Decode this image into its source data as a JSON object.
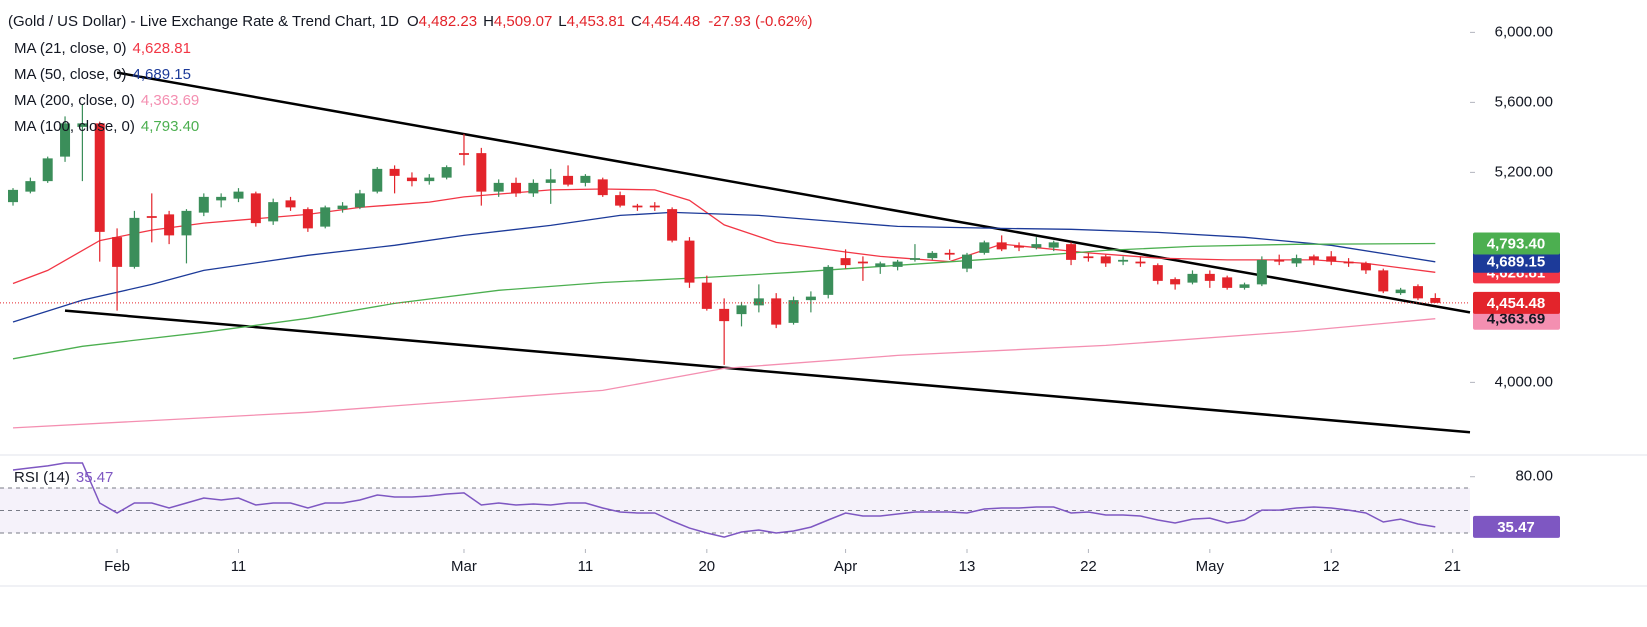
{
  "chart_data": [
    {
      "type": "candlestick",
      "title": "(Gold / US Dollar) - Live Exchange Rate & Trend Chart, 1D",
      "ohlc_header": [
        {
          "key": "O",
          "text": "4,482.23"
        },
        {
          "key": "H",
          "text": "4,509.07"
        },
        {
          "key": "L",
          "text": "4,453.81"
        },
        {
          "key": "C",
          "text": "4,454.48"
        }
      ],
      "change_text": "-27.93 (-0.62%)",
      "xlim": [
        -0.75,
        84
      ],
      "xticks": [
        {
          "value": 6,
          "label": "Feb"
        },
        {
          "value": 13,
          "label": "11"
        },
        {
          "value": 26,
          "label": "Mar"
        },
        {
          "value": 33,
          "label": "11"
        },
        {
          "value": 40,
          "label": "20"
        },
        {
          "value": 48,
          "label": "Apr"
        },
        {
          "value": 55,
          "label": "13"
        },
        {
          "value": 62,
          "label": "22"
        },
        {
          "value": 69,
          "label": "May"
        },
        {
          "value": 76,
          "label": "12"
        },
        {
          "value": 83,
          "label": "21"
        }
      ],
      "ylim": [
        3585,
        6185
      ],
      "yticks": [
        {
          "value": 6000,
          "label": "6,000.00"
        },
        {
          "value": 5600,
          "label": "5,600.00"
        },
        {
          "value": 5200,
          "label": "5,200.00"
        },
        {
          "value": 4000,
          "label": "4,000.00"
        }
      ],
      "up_color": "#3b8e5a",
      "down_color": "#e3242b",
      "candles": {
        "x": [
          0,
          1,
          2,
          3,
          4,
          5,
          6,
          7,
          8,
          9,
          10,
          11,
          12,
          13,
          14,
          15,
          16,
          17,
          18,
          19,
          20,
          21,
          22,
          23,
          24,
          25,
          26,
          27,
          28,
          29,
          30,
          31,
          32,
          33,
          34,
          35,
          36,
          37,
          38,
          39,
          40,
          41,
          42,
          43,
          44,
          45,
          46,
          47,
          48,
          49,
          50,
          51,
          52,
          53,
          54,
          55,
          56,
          57,
          58,
          59,
          60,
          61,
          62,
          63,
          64,
          65,
          66,
          67,
          68,
          69,
          70,
          71,
          72,
          73,
          74,
          75,
          76,
          77,
          78,
          79,
          80,
          81,
          82
        ],
        "open": [
          5030,
          5090,
          5150,
          5290,
          5460,
          5480,
          4830,
          4660,
          4950,
          4960,
          4840,
          4970,
          5040,
          5050,
          5080,
          4920,
          5040,
          4990,
          4890,
          4990,
          5000,
          5090,
          5220,
          5170,
          5150,
          5170,
          5310,
          5310,
          5090,
          5140,
          5080,
          5140,
          5180,
          5140,
          5160,
          5070,
          5010,
          5010,
          4990,
          4810,
          4570,
          4420,
          4390,
          4440,
          4480,
          4340,
          4470,
          4500,
          4710,
          4690,
          4660,
          4660,
          4700,
          4710,
          4740,
          4650,
          4740,
          4800,
          4780,
          4770,
          4770,
          4790,
          4720,
          4720,
          4690,
          4690,
          4670,
          4590,
          4570,
          4620,
          4600,
          4540,
          4560,
          4700,
          4680,
          4720,
          4720,
          4690,
          4680,
          4640,
          4510,
          4550,
          4482.23
        ],
        "high": [
          5110,
          5170,
          5290,
          5520,
          5590,
          5490,
          4880,
          4980,
          5080,
          4980,
          4990,
          5080,
          5080,
          5110,
          5090,
          5050,
          5060,
          5000,
          5010,
          5030,
          5100,
          5230,
          5240,
          5200,
          5190,
          5240,
          5420,
          5340,
          5160,
          5170,
          5160,
          5220,
          5240,
          5190,
          5170,
          5090,
          5020,
          5030,
          5000,
          4830,
          4610,
          4480,
          4460,
          4560,
          4510,
          4490,
          4520,
          4670,
          4760,
          4720,
          4690,
          4700,
          4790,
          4750,
          4760,
          4740,
          4810,
          4840,
          4800,
          4830,
          4810,
          4800,
          4740,
          4730,
          4720,
          4720,
          4680,
          4600,
          4640,
          4640,
          4610,
          4570,
          4720,
          4730,
          4730,
          4730,
          4750,
          4710,
          4690,
          4650,
          4540,
          4560,
          4509.07
        ],
        "low": [
          5010,
          5080,
          5140,
          5260,
          5150,
          4690,
          4410,
          4650,
          4800,
          4790,
          4680,
          4950,
          5000,
          5030,
          4890,
          4900,
          4980,
          4860,
          4880,
          4970,
          4990,
          5080,
          5080,
          5120,
          5130,
          5160,
          5240,
          5010,
          5060,
          5060,
          5060,
          5020,
          5120,
          5120,
          5060,
          5000,
          4980,
          4980,
          4800,
          4540,
          4410,
          4100,
          4320,
          4400,
          4310,
          4330,
          4400,
          4480,
          4650,
          4580,
          4620,
          4640,
          4690,
          4700,
          4700,
          4630,
          4730,
          4750,
          4750,
          4760,
          4750,
          4670,
          4690,
          4660,
          4670,
          4660,
          4560,
          4530,
          4560,
          4540,
          4530,
          4530,
          4550,
          4670,
          4660,
          4670,
          4670,
          4660,
          4620,
          4510,
          4500,
          4470,
          4453.81
        ],
        "close": [
          5100,
          5150,
          5280,
          5480,
          5480,
          4860,
          4660,
          4940,
          4940,
          4840,
          4980,
          5060,
          5060,
          5090,
          4910,
          5030,
          5000,
          4880,
          5000,
          5010,
          5080,
          5220,
          5180,
          5150,
          5170,
          5230,
          5300,
          5090,
          5140,
          5080,
          5140,
          5160,
          5130,
          5180,
          5070,
          5010,
          5000,
          5000,
          4810,
          4570,
          4420,
          4350,
          4440,
          4480,
          4330,
          4470,
          4490,
          4660,
          4670,
          4680,
          4680,
          4690,
          4710,
          4740,
          4730,
          4730,
          4800,
          4760,
          4770,
          4790,
          4800,
          4700,
          4710,
          4680,
          4700,
          4680,
          4580,
          4560,
          4620,
          4580,
          4540,
          4560,
          4700,
          4690,
          4710,
          4700,
          4690,
          4680,
          4640,
          4520,
          4530,
          4480,
          4454.48
        ],
        "close_label": "4,454.48"
      },
      "series": [
        {
          "name": "MA (21, close, 0)",
          "color": "#f23645",
          "x": [
            0,
            2,
            5,
            8,
            11,
            17,
            20,
            24,
            26,
            31,
            34,
            37,
            39,
            41,
            44,
            48,
            50,
            54,
            57,
            62,
            66,
            70,
            75,
            78,
            82
          ],
          "values": [
            4565,
            4640,
            4810,
            4870,
            4910,
            4960,
            5000,
            5030,
            5060,
            5100,
            5105,
            5100,
            5040,
            4900,
            4800,
            4745,
            4720,
            4690,
            4790,
            4740,
            4710,
            4700,
            4700,
            4680,
            4628.81
          ],
          "last_label": "4,628.81"
        },
        {
          "name": "MA (50, close, 0)",
          "color": "#1c3a99",
          "x": [
            0,
            4,
            8,
            11,
            17,
            22,
            26,
            31,
            35,
            38,
            43,
            48,
            51,
            57,
            61,
            66,
            71,
            76,
            82
          ],
          "values": [
            4345,
            4470,
            4560,
            4640,
            4726,
            4783,
            4840,
            4897,
            4954,
            4971,
            4954,
            4914,
            4891,
            4880,
            4875,
            4857,
            4829,
            4783,
            4689.15
          ],
          "last_label": "4,689.15"
        },
        {
          "name": "MA (200, close, 0)",
          "color": "#f48fb1",
          "x": [
            0,
            17,
            34,
            41,
            51,
            63,
            74,
            82
          ],
          "values": [
            3740,
            3829,
            3954,
            4080,
            4154,
            4211,
            4291,
            4363.69
          ],
          "last_label": "4,363.69"
        },
        {
          "name": "MA (100, close, 0)",
          "color": "#4caf50",
          "x": [
            0,
            4,
            11,
            17,
            22,
            28,
            34,
            40,
            45,
            51,
            57,
            63,
            68,
            74,
            82
          ],
          "values": [
            4135,
            4206,
            4286,
            4366,
            4451,
            4526,
            4571,
            4600,
            4629,
            4669,
            4709,
            4754,
            4777,
            4789,
            4793.4
          ],
          "last_label": "4,793.40"
        }
      ],
      "trendlines": [
        {
          "x": [
            6,
            84
          ],
          "values": [
            5770,
            4400
          ]
        },
        {
          "x": [
            3,
            84
          ],
          "values": [
            4410,
            3715
          ]
        }
      ],
      "trendline_color": "#000000"
    },
    {
      "type": "line",
      "xlim": [
        -0.75,
        84
      ],
      "ylim": [
        16.7,
        99.3
      ],
      "yticks": [
        {
          "value": 80,
          "label": "80.00"
        }
      ],
      "hlines": [
        70,
        50,
        30
      ],
      "band": [
        30,
        70
      ],
      "x": [
        0,
        1,
        2,
        3,
        4,
        5,
        6,
        7,
        8,
        9,
        10,
        11,
        12,
        13,
        14,
        15,
        16,
        17,
        18,
        19,
        20,
        21,
        22,
        23,
        24,
        25,
        26,
        27,
        28,
        29,
        30,
        31,
        32,
        33,
        34,
        35,
        36,
        37,
        38,
        39,
        40,
        41,
        42,
        43,
        44,
        45,
        46,
        47,
        48,
        49,
        50,
        51,
        52,
        53,
        54,
        55,
        56,
        57,
        58,
        59,
        60,
        61,
        62,
        63,
        64,
        65,
        66,
        67,
        68,
        69,
        70,
        71,
        72,
        73,
        74,
        75,
        76,
        77,
        78,
        79,
        80,
        81,
        82
      ],
      "series": [
        {
          "name": "RSI (14)",
          "color": "#7e57c2",
          "values": [
            86.0,
            87.8,
            89.6,
            92.2,
            92.2,
            56.7,
            47.8,
            56.7,
            56.7,
            52.2,
            56.7,
            61.1,
            59.3,
            61.1,
            54.9,
            56.7,
            56.7,
            52.2,
            56.7,
            56.7,
            59.3,
            63.8,
            62.0,
            62.0,
            62.9,
            64.7,
            65.6,
            54.9,
            56.7,
            54.9,
            55.8,
            54.9,
            56.7,
            56.7,
            52.2,
            48.7,
            47.8,
            47.8,
            40.7,
            34.4,
            30.0,
            26.4,
            30.9,
            32.7,
            30.0,
            31.8,
            35.3,
            41.6,
            47.8,
            45.1,
            45.1,
            46.9,
            48.7,
            48.7,
            48.7,
            47.8,
            51.3,
            52.2,
            52.2,
            53.1,
            53.1,
            47.8,
            48.7,
            46.0,
            46.0,
            45.1,
            41.6,
            38.9,
            42.4,
            43.3,
            38.9,
            41.6,
            50.4,
            50.4,
            52.2,
            53.1,
            52.2,
            50.4,
            47.8,
            39.8,
            42.4,
            38.0,
            35.47
          ],
          "last_label": "35.47"
        }
      ]
    }
  ]
}
